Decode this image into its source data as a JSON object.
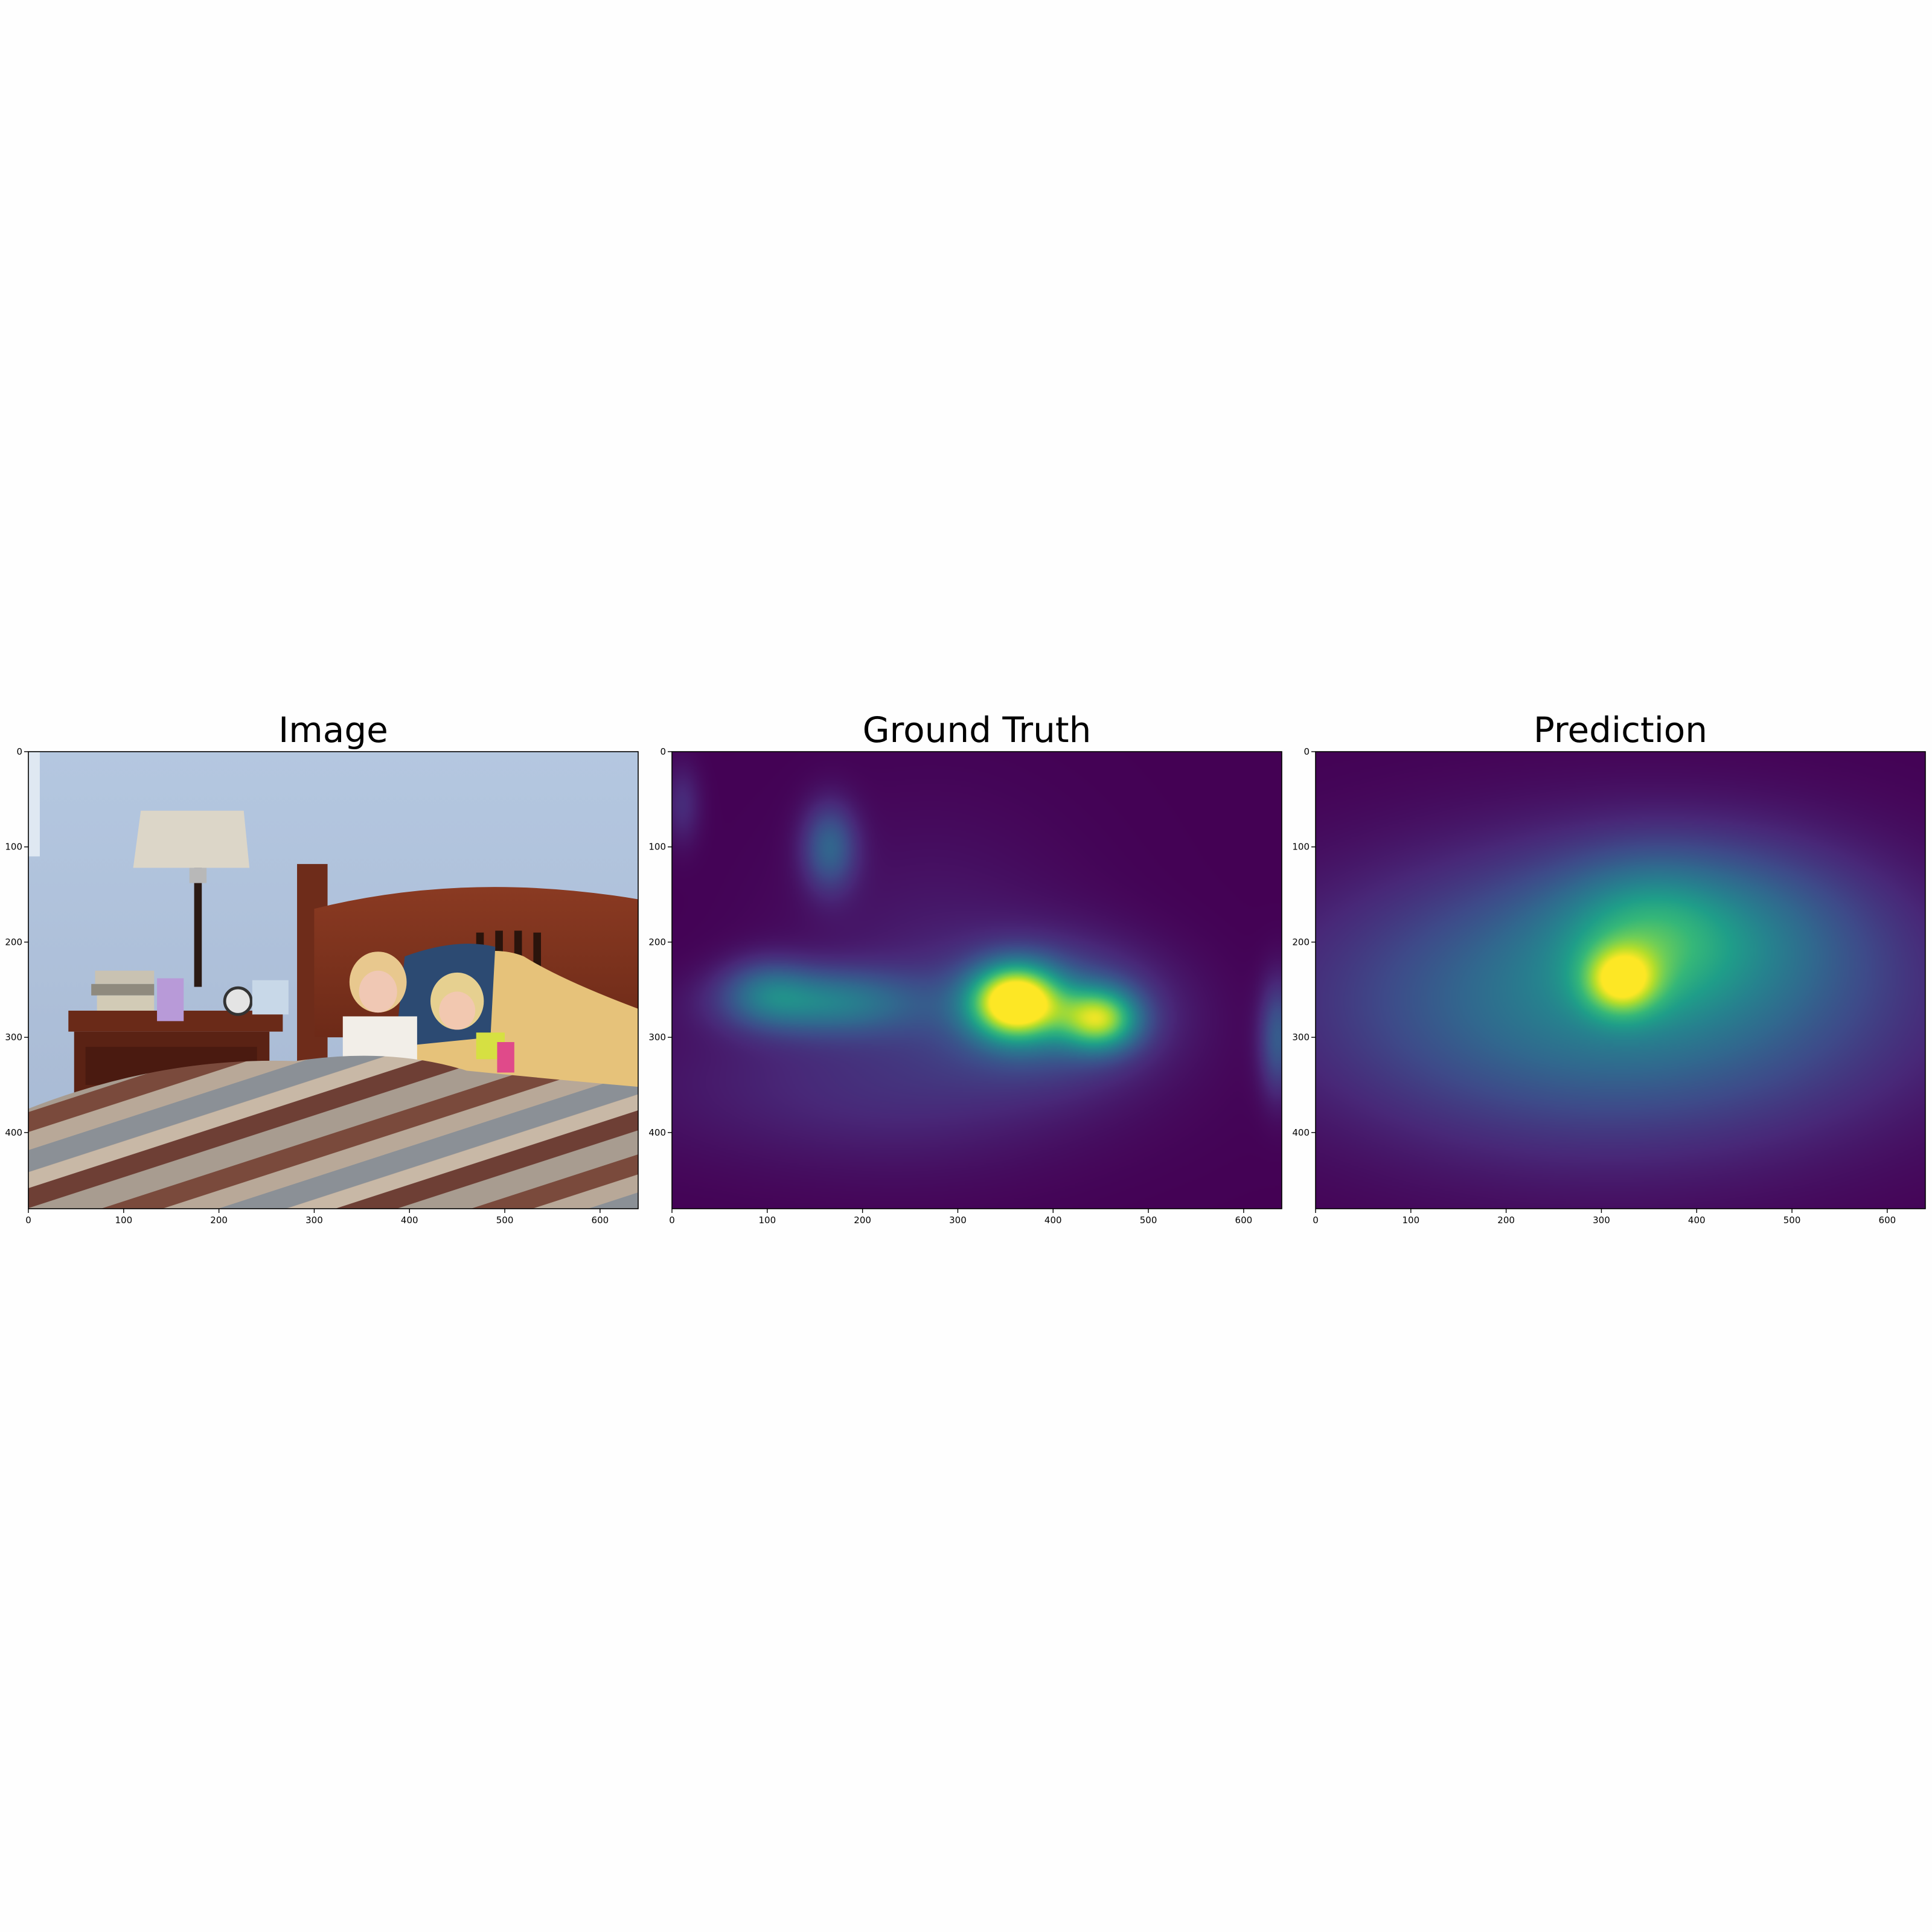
{
  "chart_data": [
    {
      "type": "image",
      "title": "Image",
      "xlim": [
        0,
        640
      ],
      "ylim": [
        480,
        0
      ],
      "xticks": [
        0,
        100,
        200,
        300,
        400,
        500,
        600
      ],
      "yticks": [
        0,
        100,
        200,
        300,
        400
      ],
      "content": "photo of two children in a bed with a bedside table and lamp"
    },
    {
      "type": "heatmap",
      "title": "Ground Truth",
      "colormap": "viridis",
      "xlim": [
        0,
        640
      ],
      "ylim": [
        480,
        0
      ],
      "xticks": [
        0,
        100,
        200,
        300,
        400,
        500,
        600
      ],
      "yticks": [
        0,
        100,
        200,
        300,
        400
      ],
      "blobs": [
        {
          "x": 360,
          "y": 262,
          "sx": 32,
          "sy": 26,
          "v": 1.0
        },
        {
          "x": 448,
          "y": 280,
          "sx": 28,
          "sy": 22,
          "v": 0.68
        },
        {
          "x": 400,
          "y": 272,
          "sx": 80,
          "sy": 48,
          "v": 0.28
        },
        {
          "x": 160,
          "y": 262,
          "sx": 68,
          "sy": 24,
          "v": 0.36
        },
        {
          "x": 98,
          "y": 250,
          "sx": 32,
          "sy": 24,
          "v": 0.2
        },
        {
          "x": 165,
          "y": 100,
          "sx": 20,
          "sy": 32,
          "v": 0.3
        },
        {
          "x": 636,
          "y": 300,
          "sx": 14,
          "sy": 42,
          "v": 0.28
        },
        {
          "x": 10,
          "y": 55,
          "sx": 14,
          "sy": 30,
          "v": 0.12
        },
        {
          "x": 200,
          "y": 350,
          "sx": 180,
          "sy": 60,
          "v": 0.1
        },
        {
          "x": 270,
          "y": 230,
          "sx": 110,
          "sy": 110,
          "v": 0.07
        }
      ]
    },
    {
      "type": "heatmap",
      "title": "Prediction",
      "colormap": "viridis",
      "xlim": [
        0,
        640
      ],
      "ylim": [
        480,
        0
      ],
      "xticks": [
        0,
        100,
        200,
        300,
        400,
        500,
        600
      ],
      "yticks": [
        0,
        100,
        200,
        300,
        400
      ],
      "blobs": [
        {
          "x": 320,
          "y": 240,
          "sx": 26,
          "sy": 24,
          "v": 0.55
        },
        {
          "x": 310,
          "y": 262,
          "sx": 210,
          "sy": 100,
          "v": 0.42
        },
        {
          "x": 400,
          "y": 180,
          "sx": 110,
          "sy": 60,
          "v": 0.24
        },
        {
          "x": 345,
          "y": 195,
          "sx": 55,
          "sy": 50,
          "v": 0.18
        }
      ]
    }
  ]
}
